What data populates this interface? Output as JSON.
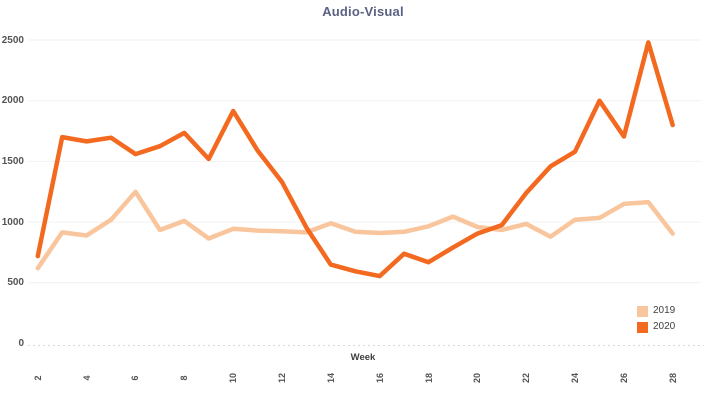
{
  "title": "Audio-Visual",
  "colors": {
    "title_text": "#5B6183",
    "tick_text": "#545454",
    "axis_title_text": "#3F3F3F",
    "gridline": "#F2F2F2",
    "axis_line": "#D9D9D9",
    "series_2019": "#F9C59C",
    "series_2020": "#F2691F",
    "background": "#FFFFFF"
  },
  "legend": {
    "position": "bottom-right",
    "items": [
      {
        "label": "2019",
        "color": "#F9C59C"
      },
      {
        "label": "2020",
        "color": "#F2691F"
      }
    ]
  },
  "chart_data": {
    "type": "line",
    "title": "Audio-Visual",
    "xlabel": "Week",
    "ylabel": "",
    "ylim": [
      0,
      2500
    ],
    "y_gridline_step": 500,
    "grid": true,
    "legend_position": "bottom-right",
    "x": [
      2,
      3,
      4,
      5,
      6,
      7,
      8,
      9,
      10,
      11,
      12,
      13,
      14,
      15,
      16,
      17,
      18,
      19,
      20,
      21,
      22,
      23,
      24,
      25,
      26,
      27,
      28
    ],
    "x_tick_labels": [
      "2",
      "4",
      "6",
      "8",
      "10",
      "12",
      "14",
      "16",
      "18",
      "20",
      "22",
      "24",
      "26",
      "28"
    ],
    "y_tick_labels": [
      "0",
      "500",
      "1000",
      "1500",
      "2000",
      "2500"
    ],
    "series": [
      {
        "name": "2019",
        "color": "#F9C59C",
        "values": [
          620,
          915,
          890,
          1020,
          1250,
          935,
          1010,
          865,
          945,
          930,
          925,
          915,
          990,
          920,
          910,
          920,
          965,
          1045,
          960,
          935,
          985,
          880,
          1020,
          1035,
          1150,
          1165,
          905
        ]
      },
      {
        "name": "2020",
        "color": "#F2691F",
        "values": [
          720,
          1700,
          1665,
          1695,
          1560,
          1625,
          1735,
          1520,
          1915,
          1590,
          1330,
          955,
          650,
          595,
          555,
          740,
          670,
          790,
          905,
          975,
          1240,
          1460,
          1580,
          2000,
          1705,
          2480,
          1800
        ]
      }
    ]
  }
}
